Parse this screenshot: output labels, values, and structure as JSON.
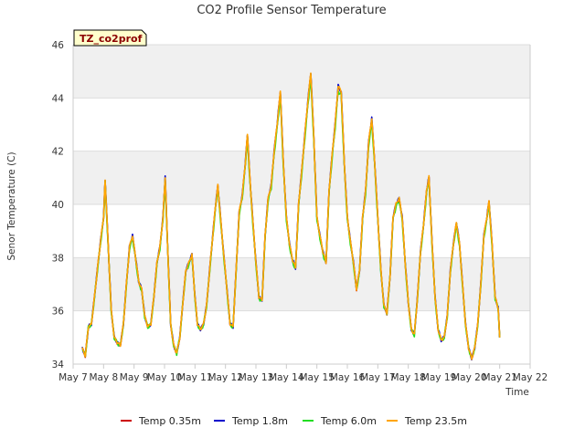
{
  "chart_data": {
    "type": "line",
    "title": "CO2 Profile Sensor Temperature",
    "xlabel": "Time",
    "ylabel": "Senor Temperature (C)",
    "badge": "TZ_co2prof",
    "ylim": [
      34,
      46
    ],
    "yticks": [
      34,
      36,
      38,
      40,
      42,
      44,
      46
    ],
    "ytick_labels": [
      "34",
      "36",
      "38",
      "40",
      "42",
      "44",
      "46"
    ],
    "xlim": [
      0,
      15
    ],
    "xticks": [
      0,
      1,
      2,
      3,
      4,
      5,
      6,
      7,
      8,
      9,
      10,
      11,
      12,
      13,
      14,
      15
    ],
    "xtick_labels": [
      "May 7",
      "May 8",
      "May 9",
      "May 10",
      "May 11",
      "May 12",
      "May 13",
      "May 14",
      "May 15",
      "May 16",
      "May 17",
      "May 18",
      "May 19",
      "May 20",
      "May 21",
      "May 22"
    ],
    "bands": [
      [
        44,
        46
      ],
      [
        40,
        42
      ],
      [
        36,
        38
      ]
    ],
    "series": [
      {
        "name": "Temp 0.35m",
        "color": "#cc0000",
        "offset": 0.0,
        "noise": 0.05
      },
      {
        "name": "Temp 1.8m",
        "color": "#0000cc",
        "offset": 0.05,
        "noise": 0.06
      },
      {
        "name": "Temp 6.0m",
        "color": "#22dd22",
        "offset": -0.12,
        "noise": 0.07
      },
      {
        "name": "Temp 23.5m",
        "color": "#ffa500",
        "offset": 0.05,
        "noise": 0.04
      }
    ],
    "base_points": [
      [
        0.3,
        34.6
      ],
      [
        0.4,
        34.3
      ],
      [
        0.5,
        35.4
      ],
      [
        0.6,
        35.5
      ],
      [
        0.7,
        36.5
      ],
      [
        0.8,
        37.6
      ],
      [
        0.9,
        38.6
      ],
      [
        1.0,
        39.5
      ],
      [
        1.05,
        40.9
      ],
      [
        1.15,
        38.5
      ],
      [
        1.25,
        36.0
      ],
      [
        1.35,
        35.0
      ],
      [
        1.45,
        34.8
      ],
      [
        1.55,
        34.7
      ],
      [
        1.65,
        35.5
      ],
      [
        1.75,
        37.0
      ],
      [
        1.85,
        38.4
      ],
      [
        1.95,
        38.8
      ],
      [
        2.05,
        38.0
      ],
      [
        2.15,
        37.1
      ],
      [
        2.25,
        36.8
      ],
      [
        2.35,
        35.8
      ],
      [
        2.45,
        35.4
      ],
      [
        2.55,
        35.5
      ],
      [
        2.65,
        36.5
      ],
      [
        2.75,
        37.8
      ],
      [
        2.85,
        38.4
      ],
      [
        2.95,
        39.5
      ],
      [
        3.02,
        41.0
      ],
      [
        3.1,
        38.5
      ],
      [
        3.2,
        35.5
      ],
      [
        3.3,
        34.7
      ],
      [
        3.4,
        34.4
      ],
      [
        3.5,
        35.0
      ],
      [
        3.6,
        36.3
      ],
      [
        3.7,
        37.5
      ],
      [
        3.8,
        37.8
      ],
      [
        3.9,
        38.1
      ],
      [
        4.0,
        36.5
      ],
      [
        4.08,
        35.5
      ],
      [
        4.18,
        35.3
      ],
      [
        4.28,
        35.5
      ],
      [
        4.38,
        36.2
      ],
      [
        4.48,
        37.5
      ],
      [
        4.58,
        38.8
      ],
      [
        4.68,
        40.0
      ],
      [
        4.75,
        40.7
      ],
      [
        4.85,
        39.3
      ],
      [
        4.95,
        38.0
      ],
      [
        5.05,
        36.8
      ],
      [
        5.15,
        35.5
      ],
      [
        5.25,
        35.4
      ],
      [
        5.35,
        37.5
      ],
      [
        5.45,
        39.7
      ],
      [
        5.55,
        40.3
      ],
      [
        5.65,
        41.5
      ],
      [
        5.72,
        42.6
      ],
      [
        5.8,
        41.0
      ],
      [
        5.9,
        39.3
      ],
      [
        6.0,
        37.8
      ],
      [
        6.1,
        36.5
      ],
      [
        6.2,
        36.4
      ],
      [
        6.3,
        38.8
      ],
      [
        6.4,
        40.2
      ],
      [
        6.5,
        40.7
      ],
      [
        6.6,
        42.0
      ],
      [
        6.7,
        43.0
      ],
      [
        6.8,
        44.2
      ],
      [
        6.9,
        41.5
      ],
      [
        7.0,
        39.5
      ],
      [
        7.1,
        38.5
      ],
      [
        7.2,
        37.9
      ],
      [
        7.3,
        37.6
      ],
      [
        7.4,
        40.0
      ],
      [
        7.5,
        41.2
      ],
      [
        7.6,
        42.5
      ],
      [
        7.7,
        43.8
      ],
      [
        7.8,
        44.9
      ],
      [
        7.9,
        42.5
      ],
      [
        8.0,
        39.5
      ],
      [
        8.1,
        38.8
      ],
      [
        8.2,
        38.2
      ],
      [
        8.3,
        37.8
      ],
      [
        8.4,
        40.5
      ],
      [
        8.5,
        41.8
      ],
      [
        8.6,
        43.0
      ],
      [
        8.7,
        44.4
      ],
      [
        8.8,
        44.2
      ],
      [
        8.9,
        41.5
      ],
      [
        9.0,
        39.5
      ],
      [
        9.1,
        38.6
      ],
      [
        9.2,
        37.8
      ],
      [
        9.3,
        36.8
      ],
      [
        9.4,
        37.5
      ],
      [
        9.5,
        39.5
      ],
      [
        9.6,
        40.5
      ],
      [
        9.7,
        42.3
      ],
      [
        9.8,
        43.2
      ],
      [
        9.9,
        41.5
      ],
      [
        10.0,
        39.5
      ],
      [
        10.1,
        37.5
      ],
      [
        10.2,
        36.2
      ],
      [
        10.3,
        35.9
      ],
      [
        10.4,
        37.3
      ],
      [
        10.5,
        39.5
      ],
      [
        10.6,
        40.0
      ],
      [
        10.7,
        40.2
      ],
      [
        10.8,
        39.5
      ],
      [
        10.9,
        37.8
      ],
      [
        11.0,
        36.3
      ],
      [
        11.1,
        35.3
      ],
      [
        11.2,
        35.1
      ],
      [
        11.3,
        36.5
      ],
      [
        11.4,
        38.2
      ],
      [
        11.5,
        39.2
      ],
      [
        11.6,
        40.5
      ],
      [
        11.68,
        41.0
      ],
      [
        11.78,
        38.5
      ],
      [
        11.88,
        36.5
      ],
      [
        11.98,
        35.3
      ],
      [
        12.08,
        34.9
      ],
      [
        12.18,
        35.0
      ],
      [
        12.28,
        35.8
      ],
      [
        12.38,
        37.5
      ],
      [
        12.48,
        38.5
      ],
      [
        12.58,
        39.3
      ],
      [
        12.68,
        38.5
      ],
      [
        12.78,
        37.0
      ],
      [
        12.88,
        35.5
      ],
      [
        12.98,
        34.6
      ],
      [
        13.08,
        34.2
      ],
      [
        13.18,
        34.6
      ],
      [
        13.28,
        35.5
      ],
      [
        13.38,
        37.0
      ],
      [
        13.48,
        38.8
      ],
      [
        13.58,
        39.5
      ],
      [
        13.65,
        40.1
      ],
      [
        13.75,
        38.5
      ],
      [
        13.85,
        36.5
      ],
      [
        13.95,
        36.1
      ],
      [
        14.0,
        35.0
      ]
    ]
  },
  "legend_position": "bottom"
}
